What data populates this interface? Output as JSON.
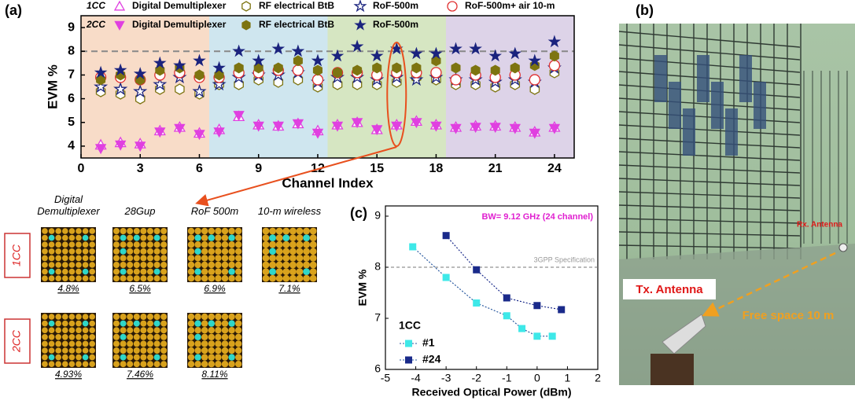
{
  "panel_labels": {
    "a": "(a)",
    "b": "(b)",
    "c": "(c)"
  },
  "chart_data": [
    {
      "type": "scatter",
      "x_label": "Channel Index",
      "y_label": "EVM %",
      "x": [
        1,
        2,
        3,
        4,
        5,
        6,
        7,
        8,
        9,
        10,
        11,
        12,
        13,
        14,
        15,
        16,
        17,
        18,
        19,
        20,
        21,
        22,
        23,
        24
      ],
      "xlim": [
        0,
        25
      ],
      "xticks": [
        0,
        3,
        6,
        9,
        12,
        15,
        18,
        21,
        24
      ],
      "ylim": [
        3.5,
        9.5
      ],
      "yticks": [
        4,
        5,
        6,
        7,
        8,
        9
      ],
      "reference_line": 8,
      "series": [
        {
          "group": "1CC",
          "name": "Digital Demultiplexer",
          "marker": "triangle-up",
          "filled": false,
          "color": "#e040e0",
          "values": [
            4.05,
            4.15,
            4.1,
            4.65,
            4.8,
            4.55,
            4.7,
            5.25,
            4.9,
            4.85,
            4.95,
            4.65,
            4.9,
            5.0,
            4.7,
            4.9,
            5.05,
            4.9,
            4.8,
            4.85,
            4.85,
            4.8,
            4.6,
            4.8
          ]
        },
        {
          "group": "1CC",
          "name": "RF electrical BtB",
          "marker": "hexagon",
          "filled": false,
          "color": "#7d7410",
          "values": [
            6.3,
            6.2,
            6.0,
            6.4,
            6.4,
            6.2,
            6.6,
            6.6,
            6.8,
            6.7,
            6.8,
            6.5,
            6.6,
            6.6,
            6.6,
            6.7,
            6.9,
            6.8,
            6.6,
            6.6,
            6.5,
            6.6,
            6.4,
            7.1
          ]
        },
        {
          "group": "1CC",
          "name": "RoF-500m",
          "marker": "star",
          "filled": false,
          "color": "#1a237e",
          "values": [
            6.5,
            6.4,
            6.3,
            6.6,
            6.9,
            6.3,
            6.6,
            6.9,
            7.0,
            7.0,
            7.1,
            6.7,
            6.9,
            6.9,
            6.8,
            6.9,
            6.8,
            6.9,
            6.8,
            6.8,
            6.7,
            6.8,
            6.7,
            7.3
          ]
        },
        {
          "group": "1CC",
          "name": "RoF-500m+ air 10-m",
          "marker": "circle",
          "filled": false,
          "color": "#e03030",
          "values": [
            6.9,
            6.9,
            6.8,
            7.0,
            7.1,
            6.9,
            6.9,
            7.1,
            7.1,
            7.2,
            7.2,
            6.8,
            7.1,
            7.1,
            7.0,
            7.1,
            7.1,
            7.1,
            6.8,
            7.0,
            6.9,
            7.0,
            6.8,
            7.4
          ]
        },
        {
          "group": "2CC",
          "name": "Digital Demultiplexer",
          "marker": "triangle-down",
          "filled": true,
          "color": "#e040e0",
          "values": [
            3.9,
            4.05,
            4.0,
            4.6,
            4.75,
            4.5,
            4.6,
            5.3,
            4.85,
            4.85,
            4.95,
            4.55,
            4.85,
            5.0,
            4.7,
            4.85,
            5.0,
            4.85,
            4.75,
            4.8,
            4.8,
            4.75,
            4.55,
            4.75
          ]
        },
        {
          "group": "2CC",
          "name": "RF electrical BtB",
          "marker": "hexagon",
          "filled": true,
          "color": "#7d7410",
          "values": [
            6.8,
            7.0,
            6.8,
            7.2,
            7.3,
            7.0,
            7.0,
            7.3,
            7.3,
            7.3,
            7.6,
            7.2,
            7.1,
            7.2,
            7.3,
            7.3,
            7.3,
            7.6,
            7.3,
            7.2,
            7.2,
            7.3,
            7.4,
            7.8
          ]
        },
        {
          "group": "2CC",
          "name": "RoF-500m",
          "marker": "star",
          "filled": true,
          "color": "#1a237e",
          "values": [
            7.1,
            7.2,
            7.05,
            7.5,
            7.4,
            7.6,
            7.3,
            8.0,
            7.6,
            8.1,
            8.0,
            7.6,
            7.8,
            8.2,
            7.8,
            8.1,
            7.9,
            7.9,
            8.1,
            8.1,
            7.8,
            7.9,
            7.6,
            8.4
          ]
        }
      ]
    },
    {
      "type": "line",
      "x_label": "Received Optical Power (dBm)",
      "y_label": "EVM %",
      "annotation": "BW= 9.12 GHz (24 channel)",
      "reference_line": 8,
      "reference_label": "3GPP Specification",
      "legend_title": "1CC",
      "xlim": [
        -5,
        2
      ],
      "xticks": [
        -5,
        -4,
        -3,
        -2,
        -1,
        0,
        1,
        2
      ],
      "ylim": [
        6,
        9.2
      ],
      "yticks": [
        6,
        7,
        8,
        9
      ],
      "series": [
        {
          "name": "#1",
          "color": "#3ee8e8",
          "x": [
            -4.1,
            -3,
            -2,
            -1,
            -0.5,
            0,
            0.5
          ],
          "values": [
            8.4,
            7.8,
            7.3,
            7.05,
            6.8,
            6.65,
            6.65
          ]
        },
        {
          "name": "#24",
          "color": "#1a2a8a",
          "x": [
            -3,
            -2,
            -1,
            0,
            0.8
          ],
          "values": [
            8.62,
            7.95,
            7.4,
            7.25,
            7.17
          ]
        }
      ]
    }
  ],
  "constellations": {
    "columns": [
      "Digital Demultiplexer",
      "28Gup",
      "RoF 500m",
      "10-m wireless"
    ],
    "rows": [
      {
        "label": "1CC",
        "evm": [
          "4.8%",
          "6.5%",
          "6.9%",
          "7.1%"
        ]
      },
      {
        "label": "2CC",
        "evm": [
          "4.93%",
          "7.46%",
          "8.11%"
        ]
      }
    ]
  },
  "photo": {
    "tx_label": "Tx. Antenna",
    "rx_label": "Rx. Antenna",
    "distance_label": "Free space 10 m"
  }
}
